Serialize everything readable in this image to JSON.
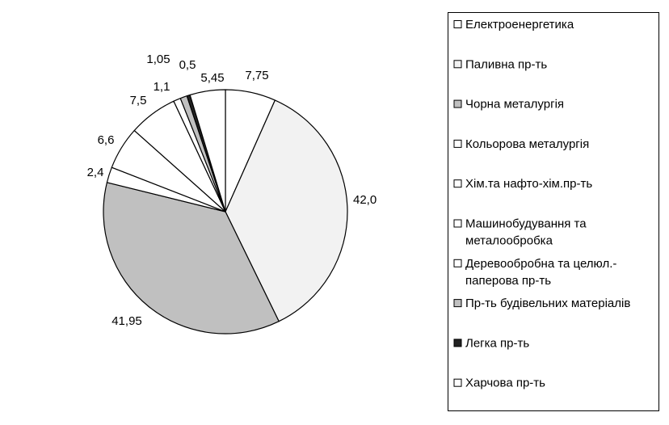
{
  "chart_data": {
    "type": "pie",
    "slices": [
      {
        "label": "Електроенергетика",
        "value": 7.75,
        "value_label": "7,75",
        "color": "#ffffff"
      },
      {
        "label": "Паливна пр-ть",
        "value": 42.0,
        "value_label": "42,0",
        "color": "#f2f2f2"
      },
      {
        "label": "Чорна металургія",
        "value": 41.95,
        "value_label": "41,95",
        "color": "#c0c0c0"
      },
      {
        "label": "Кольорова металургія",
        "value": 2.4,
        "value_label": "2,4",
        "color": "#ffffff"
      },
      {
        "label": "Хім.та нафто-хім.пр-ть",
        "value": 6.6,
        "value_label": "6,6",
        "color": "#ffffff"
      },
      {
        "label": "Машинобудування та металообробка",
        "value": 7.5,
        "value_label": "7,5",
        "color": "#ffffff"
      },
      {
        "label": "Деревообробна та целюл.-паперова пр-ть",
        "value": 1.1,
        "value_label": "1,1",
        "color": "#ffffff"
      },
      {
        "label": "Пр-ть будівельних матеріалів",
        "value": 1.05,
        "value_label": "1,05",
        "color": "#c0c0c0"
      },
      {
        "label": "Легка пр-ть",
        "value": 0.5,
        "value_label": "0,5",
        "color": "#222222"
      },
      {
        "label": "Харчова пр-ть",
        "value": 5.45,
        "value_label": "5,45",
        "color": "#ffffff"
      }
    ],
    "legend": {
      "placement": "right",
      "entries": [
        [
          "Електроенергетика"
        ],
        [
          "Паливна пр-ть"
        ],
        [
          "Чорна металургія"
        ],
        [
          "Кольорова металургія"
        ],
        [
          "Хім.та нафто-хім.пр-ть"
        ],
        [
          "Машинобудування та",
          "металообробка"
        ],
        [
          "Деревообробна та целюл.-",
          "паперова пр-ть"
        ],
        [
          "Пр-ть будівельних матеріалів"
        ],
        [
          "Легка пр-ть"
        ],
        [
          "Харчова пр-ть"
        ]
      ]
    }
  }
}
